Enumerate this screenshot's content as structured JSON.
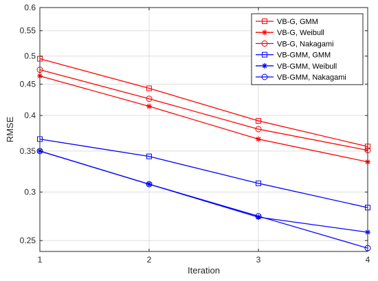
{
  "chart_data": {
    "type": "line",
    "xlabel": "Iteration",
    "ylabel": "RMSE",
    "yscale": "log",
    "xlim": [
      1,
      4
    ],
    "ylim": [
      0.24,
      0.6
    ],
    "grid": true,
    "legend_position": "top-right",
    "x": [
      1,
      2,
      3,
      4
    ],
    "x_ticks": [
      "1",
      "2",
      "3",
      "4"
    ],
    "y_ticks": [
      0.25,
      0.3,
      0.35,
      0.4,
      0.45,
      0.5,
      0.55,
      0.6
    ],
    "y_tick_labels": [
      "0.25",
      "0.3",
      "0.35",
      "0.4",
      "0.45",
      "0.5",
      "0.55",
      "0.6"
    ],
    "series": [
      {
        "name": "VB-G, GMM",
        "color": "#ff0000",
        "marker": "square",
        "values": [
          0.495,
          0.443,
          0.392,
          0.356
        ]
      },
      {
        "name": "VB-G, Weibull",
        "color": "#ff0000",
        "marker": "star",
        "values": [
          0.464,
          0.414,
          0.366,
          0.336
        ]
      },
      {
        "name": "VB-G, Nakagami",
        "color": "#ff0000",
        "marker": "circle",
        "values": [
          0.475,
          0.426,
          0.38,
          0.351
        ]
      },
      {
        "name": "VB-GMM, GMM",
        "color": "#0000ff",
        "marker": "square",
        "values": [
          0.366,
          0.343,
          0.31,
          0.283
        ]
      },
      {
        "name": "VB-GMM, Weibull",
        "color": "#0000ff",
        "marker": "star",
        "values": [
          0.35,
          0.309,
          0.273,
          0.258
        ]
      },
      {
        "name": "VB-GMM, Nakagami",
        "color": "#0000ff",
        "marker": "circle",
        "values": [
          0.35,
          0.309,
          0.274,
          0.243
        ]
      }
    ]
  }
}
